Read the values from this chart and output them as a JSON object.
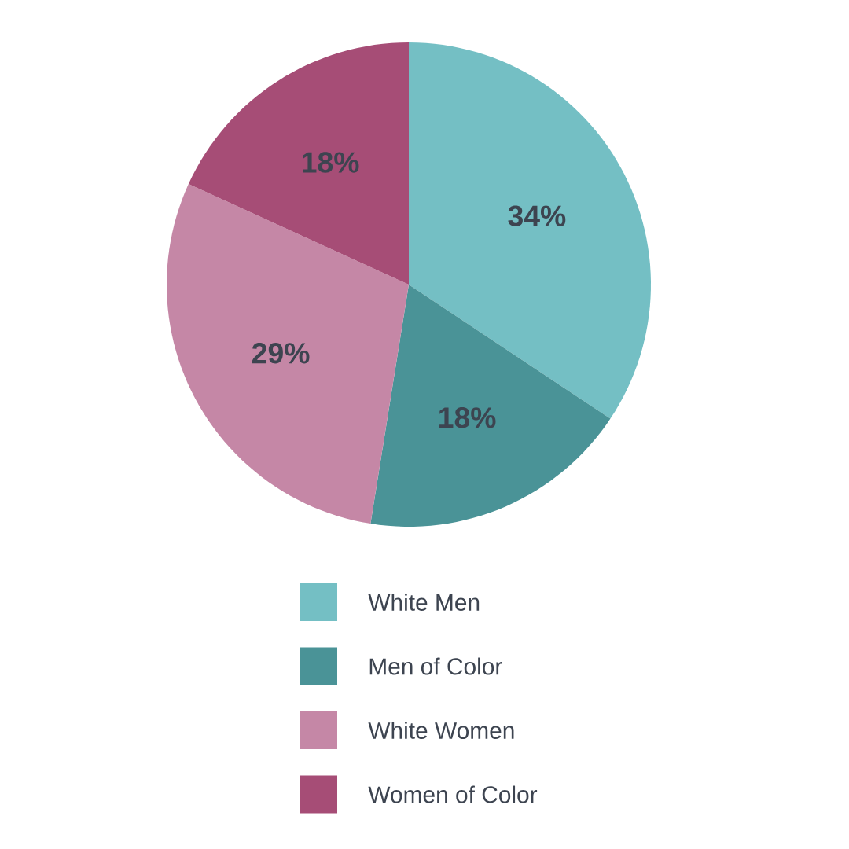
{
  "chart_data": {
    "type": "pie",
    "categories": [
      "White Men",
      "Men of Color",
      "White Women",
      "Women of Color"
    ],
    "values": [
      34,
      18,
      29,
      18
    ],
    "value_labels": [
      "34%",
      "18%",
      "29%",
      "18%"
    ],
    "colors": [
      "#74bfc4",
      "#4a9397",
      "#c587a6",
      "#a64d76"
    ],
    "legend": "bottom"
  }
}
